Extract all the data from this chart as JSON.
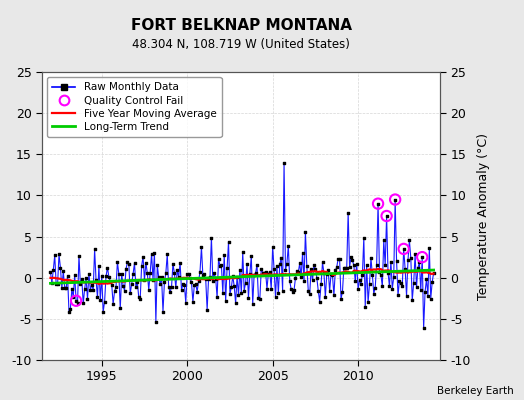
{
  "title": "FORT BELKNAP MONTANA",
  "subtitle": "48.304 N, 108.719 W (United States)",
  "ylabel": "Temperature Anomaly (°C)",
  "credit": "Berkeley Earth",
  "ylim": [
    -10,
    25
  ],
  "yticks": [
    -10,
    -5,
    0,
    5,
    10,
    15,
    20,
    25
  ],
  "xlim_start": 1991.5,
  "xlim_end": 2014.8,
  "xticks": [
    1995,
    2000,
    2005,
    2010
  ],
  "bg_color": "#e8e8e8",
  "plot_bg_color": "#ffffff",
  "raw_color": "#0000ff",
  "ma_color": "#ff0000",
  "trend_color": "#00cc00",
  "qc_color": "#ff00ff",
  "seed": 42
}
